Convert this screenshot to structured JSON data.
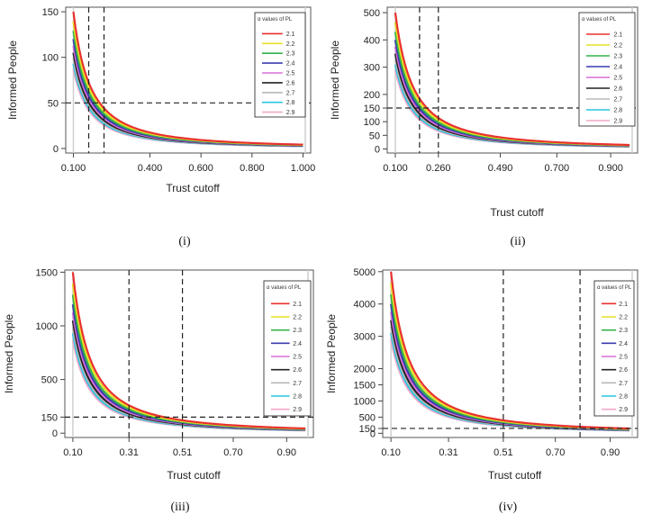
{
  "figure": {
    "description_panels": [
      "(i)",
      "(ii)",
      "(iii)",
      "(iv)"
    ]
  },
  "chart_data": [
    {
      "type": "line",
      "caption": "(i)",
      "xlabel": "Trust cutoff",
      "ylabel": "Informed People",
      "legend_title": "α values of PL",
      "xlim": [
        0.07,
        1.03
      ],
      "ylim": [
        -5,
        155
      ],
      "xticks": [
        0.1,
        0.4,
        0.6,
        0.8,
        1.0
      ],
      "xtick_labels": [
        "0.100",
        "0.400",
        "0.600",
        "0.800",
        "1.000"
      ],
      "yticks": [
        0,
        50,
        100,
        150
      ],
      "ytick_labels": [
        "0",
        "50",
        "100",
        "150"
      ],
      "vlines": [
        0.16,
        0.22
      ],
      "hlines": [
        50
      ],
      "y_at_x0": 150,
      "series": [
        {
          "name": "2.1",
          "color": "#e8312f",
          "scale": 1.0
        },
        {
          "name": "2.2",
          "color": "#e6e026",
          "scale": 0.93
        },
        {
          "name": "2.3",
          "color": "#33b24a",
          "scale": 0.86
        },
        {
          "name": "2.4",
          "color": "#3b3bb0",
          "scale": 0.8
        },
        {
          "name": "2.5",
          "color": "#d96fd6",
          "scale": 0.75
        },
        {
          "name": "2.6",
          "color": "#222222",
          "scale": 0.7
        },
        {
          "name": "2.7",
          "color": "#b8b8b8",
          "scale": 0.66
        },
        {
          "name": "2.8",
          "color": "#27c6e0",
          "scale": 0.62
        },
        {
          "name": "2.9",
          "color": "#f0a8c8",
          "scale": 0.58
        }
      ]
    },
    {
      "type": "line",
      "caption": "(ii)",
      "xlabel": "Trust cutoff",
      "ylabel": "Informed People",
      "legend_title": "α values of PL",
      "xlim": [
        0.07,
        1.0
      ],
      "ylim": [
        -15,
        520
      ],
      "xticks": [
        0.1,
        0.26,
        0.49,
        0.7,
        0.9
      ],
      "xtick_labels": [
        "0.100",
        "0.260",
        "0.490",
        "0.700",
        "0.900"
      ],
      "yticks": [
        0,
        50,
        100,
        150,
        200,
        300,
        400,
        500
      ],
      "ytick_labels": [
        "0",
        "50",
        "100",
        "150",
        "200",
        "300",
        "400",
        "500"
      ],
      "vlines": [
        0.19,
        0.26
      ],
      "hlines": [
        150
      ],
      "y_at_x0": 500,
      "series": [
        {
          "name": "2.1",
          "color": "#e8312f",
          "scale": 1.0
        },
        {
          "name": "2.2",
          "color": "#e6e026",
          "scale": 0.93
        },
        {
          "name": "2.3",
          "color": "#33b24a",
          "scale": 0.86
        },
        {
          "name": "2.4",
          "color": "#3b3bb0",
          "scale": 0.8
        },
        {
          "name": "2.5",
          "color": "#d96fd6",
          "scale": 0.75
        },
        {
          "name": "2.6",
          "color": "#222222",
          "scale": 0.7
        },
        {
          "name": "2.7",
          "color": "#b8b8b8",
          "scale": 0.66
        },
        {
          "name": "2.8",
          "color": "#27c6e0",
          "scale": 0.62
        },
        {
          "name": "2.9",
          "color": "#f0a8c8",
          "scale": 0.58
        }
      ]
    },
    {
      "type": "line",
      "caption": "(iii)",
      "xlabel": "Trust cutoff",
      "ylabel": "Informed People",
      "legend_title": "α values of PL",
      "xlim": [
        0.07,
        1.0
      ],
      "ylim": [
        -40,
        1520
      ],
      "xticks": [
        0.1,
        0.31,
        0.51,
        0.7,
        0.9
      ],
      "xtick_labels": [
        "0.10",
        "0.31",
        "0.51",
        "0.70",
        "0.90"
      ],
      "yticks": [
        0,
        150,
        500,
        1000,
        1500
      ],
      "ytick_labels": [
        "0",
        "150",
        "500",
        "1000",
        "1500"
      ],
      "vlines": [
        0.31,
        0.51
      ],
      "hlines": [
        150
      ],
      "y_at_x0": 1500,
      "series": [
        {
          "name": "2.1",
          "color": "#e8312f",
          "scale": 1.0
        },
        {
          "name": "2.2",
          "color": "#e6e026",
          "scale": 0.93
        },
        {
          "name": "2.3",
          "color": "#33b24a",
          "scale": 0.86
        },
        {
          "name": "2.4",
          "color": "#3b3bb0",
          "scale": 0.8
        },
        {
          "name": "2.5",
          "color": "#d96fd6",
          "scale": 0.75
        },
        {
          "name": "2.6",
          "color": "#222222",
          "scale": 0.7
        },
        {
          "name": "2.7",
          "color": "#b8b8b8",
          "scale": 0.66
        },
        {
          "name": "2.8",
          "color": "#27c6e0",
          "scale": 0.62
        },
        {
          "name": "2.9",
          "color": "#f0a8c8",
          "scale": 0.58
        }
      ]
    },
    {
      "type": "line",
      "caption": "(iv)",
      "xlabel": "Trust cutoff",
      "ylabel": "Informed People",
      "legend_title": "α values of PL",
      "xlim": [
        0.07,
        1.0
      ],
      "ylim": [
        -130,
        5050
      ],
      "xticks": [
        0.1,
        0.31,
        0.51,
        0.7,
        0.9
      ],
      "xtick_labels": [
        "0.10",
        "0.31",
        "0.51",
        "0.70",
        "0.90"
      ],
      "yticks": [
        0,
        150,
        500,
        1000,
        1500,
        2000,
        3000,
        4000,
        5000
      ],
      "ytick_labels": [
        "0",
        "150",
        "500",
        "1000",
        "1500",
        "2000",
        "3000",
        "4000",
        "5000"
      ],
      "vlines": [
        0.51,
        0.79
      ],
      "hlines": [
        150
      ],
      "y_at_x0": 5000,
      "series": [
        {
          "name": "2.1",
          "color": "#e8312f",
          "scale": 1.0
        },
        {
          "name": "2.2",
          "color": "#e6e026",
          "scale": 0.93
        },
        {
          "name": "2.3",
          "color": "#33b24a",
          "scale": 0.86
        },
        {
          "name": "2.4",
          "color": "#3b3bb0",
          "scale": 0.8
        },
        {
          "name": "2.5",
          "color": "#d96fd6",
          "scale": 0.75
        },
        {
          "name": "2.6",
          "color": "#222222",
          "scale": 0.7
        },
        {
          "name": "2.7",
          "color": "#b8b8b8",
          "scale": 0.66
        },
        {
          "name": "2.8",
          "color": "#27c6e0",
          "scale": 0.62
        },
        {
          "name": "2.9",
          "color": "#f0a8c8",
          "scale": 0.58
        }
      ]
    }
  ]
}
